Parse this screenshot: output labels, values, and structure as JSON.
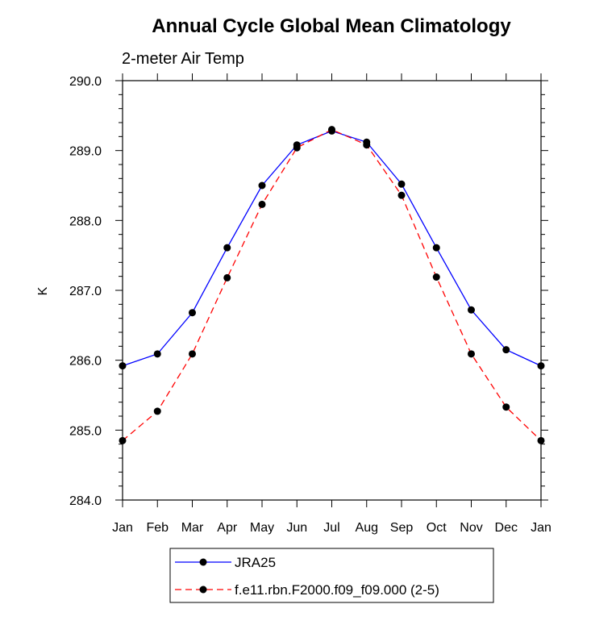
{
  "chart_data": {
    "type": "line",
    "title": "Annual Cycle Global Mean Climatology",
    "subtitle": "2-meter Air Temp",
    "ylabel": "K",
    "xlabel": "",
    "categories": [
      "Jan",
      "Feb",
      "Mar",
      "Apr",
      "May",
      "Jun",
      "Jul",
      "Aug",
      "Sep",
      "Oct",
      "Nov",
      "Dec",
      "Jan"
    ],
    "ylim": [
      284.0,
      290.0
    ],
    "yticks": [
      "284.0",
      "285.0",
      "286.0",
      "287.0",
      "288.0",
      "289.0",
      "290.0"
    ],
    "grid": false,
    "legend_position": "bottom",
    "series": [
      {
        "name": "JRA25",
        "color": "#0000ff",
        "dashed": false,
        "values": [
          285.92,
          286.09,
          286.68,
          287.61,
          288.5,
          289.08,
          289.28,
          289.12,
          288.52,
          287.61,
          286.72,
          286.15,
          285.92
        ]
      },
      {
        "name": "f.e11.rbn.F2000.f09_f09.000 (2-5)",
        "color": "#ff0000",
        "dashed": true,
        "values": [
          284.85,
          285.27,
          286.09,
          287.18,
          288.23,
          289.04,
          289.3,
          289.08,
          288.36,
          287.19,
          286.09,
          285.33,
          284.85
        ]
      }
    ]
  }
}
